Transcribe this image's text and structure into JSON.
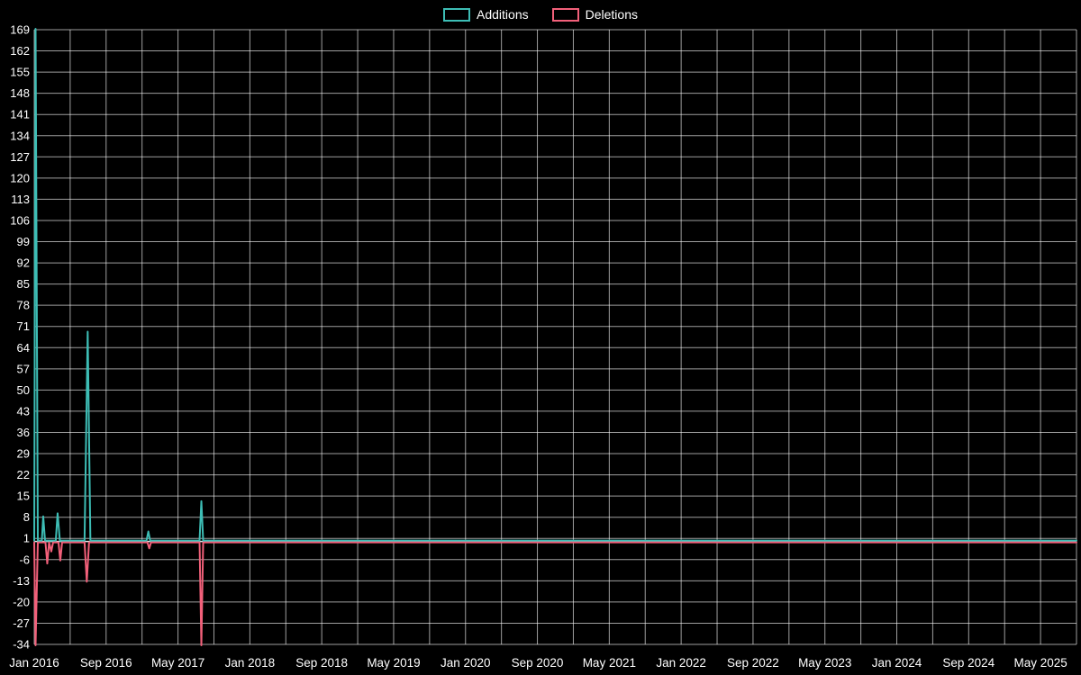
{
  "chart_data": {
    "type": "line",
    "title": "",
    "legend_position": "top-center",
    "background_color": "#000000",
    "grid_color": "rgba(255,255,255,0.62)",
    "zero_line_color": "#e8e8e8",
    "axis_text_color": "#ffffff",
    "x_unit": "month index from Jan 2016",
    "xlim": [
      0,
      116
    ],
    "ylim": [
      -34,
      169
    ],
    "grid_x_step_months": 4,
    "y_ticks": [
      169,
      162,
      155,
      148,
      141,
      134,
      127,
      120,
      113,
      106,
      99,
      92,
      85,
      78,
      71,
      64,
      57,
      50,
      43,
      36,
      29,
      22,
      15,
      8,
      1,
      -6,
      -13,
      -20,
      -27,
      -34
    ],
    "x_tick_months": [
      0,
      8,
      16,
      24,
      32,
      40,
      48,
      56,
      64,
      72,
      80,
      88,
      96,
      104,
      112
    ],
    "x_tick_labels": [
      "Jan 2016",
      "Sep 2016",
      "May 2017",
      "Jan 2018",
      "Sep 2018",
      "May 2019",
      "Jan 2020",
      "Sep 2020",
      "May 2021",
      "Jan 2022",
      "Sep 2022",
      "May 2023",
      "Jan 2024",
      "Sep 2024",
      "May 2025"
    ],
    "series": [
      {
        "name": "Additions",
        "color": "#3dbdb5",
        "points": [
          [
            0,
            0
          ],
          [
            0.15,
            169
          ],
          [
            0.4,
            0
          ],
          [
            0.85,
            0
          ],
          [
            1.0,
            8
          ],
          [
            1.2,
            0
          ],
          [
            2.4,
            0
          ],
          [
            2.6,
            9
          ],
          [
            2.85,
            0
          ],
          [
            5.6,
            0
          ],
          [
            5.95,
            69
          ],
          [
            6.25,
            0
          ],
          [
            12.5,
            0
          ],
          [
            12.7,
            3
          ],
          [
            12.9,
            0
          ],
          [
            18.4,
            0
          ],
          [
            18.6,
            13
          ],
          [
            18.8,
            0
          ],
          [
            116,
            0
          ]
        ]
      },
      {
        "name": "Deletions",
        "color": "#f2607a",
        "points": [
          [
            0,
            0
          ],
          [
            0.15,
            -34
          ],
          [
            0.4,
            0
          ],
          [
            1.25,
            0
          ],
          [
            1.45,
            -7
          ],
          [
            1.65,
            0
          ],
          [
            1.9,
            -3
          ],
          [
            2.1,
            0
          ],
          [
            2.7,
            0
          ],
          [
            2.9,
            -6
          ],
          [
            3.1,
            0
          ],
          [
            5.6,
            0
          ],
          [
            5.85,
            -13
          ],
          [
            6.1,
            0
          ],
          [
            12.6,
            0
          ],
          [
            12.8,
            -2
          ],
          [
            13.0,
            0
          ],
          [
            18.4,
            0
          ],
          [
            18.6,
            -34
          ],
          [
            18.8,
            0
          ],
          [
            116,
            0
          ]
        ]
      }
    ]
  }
}
